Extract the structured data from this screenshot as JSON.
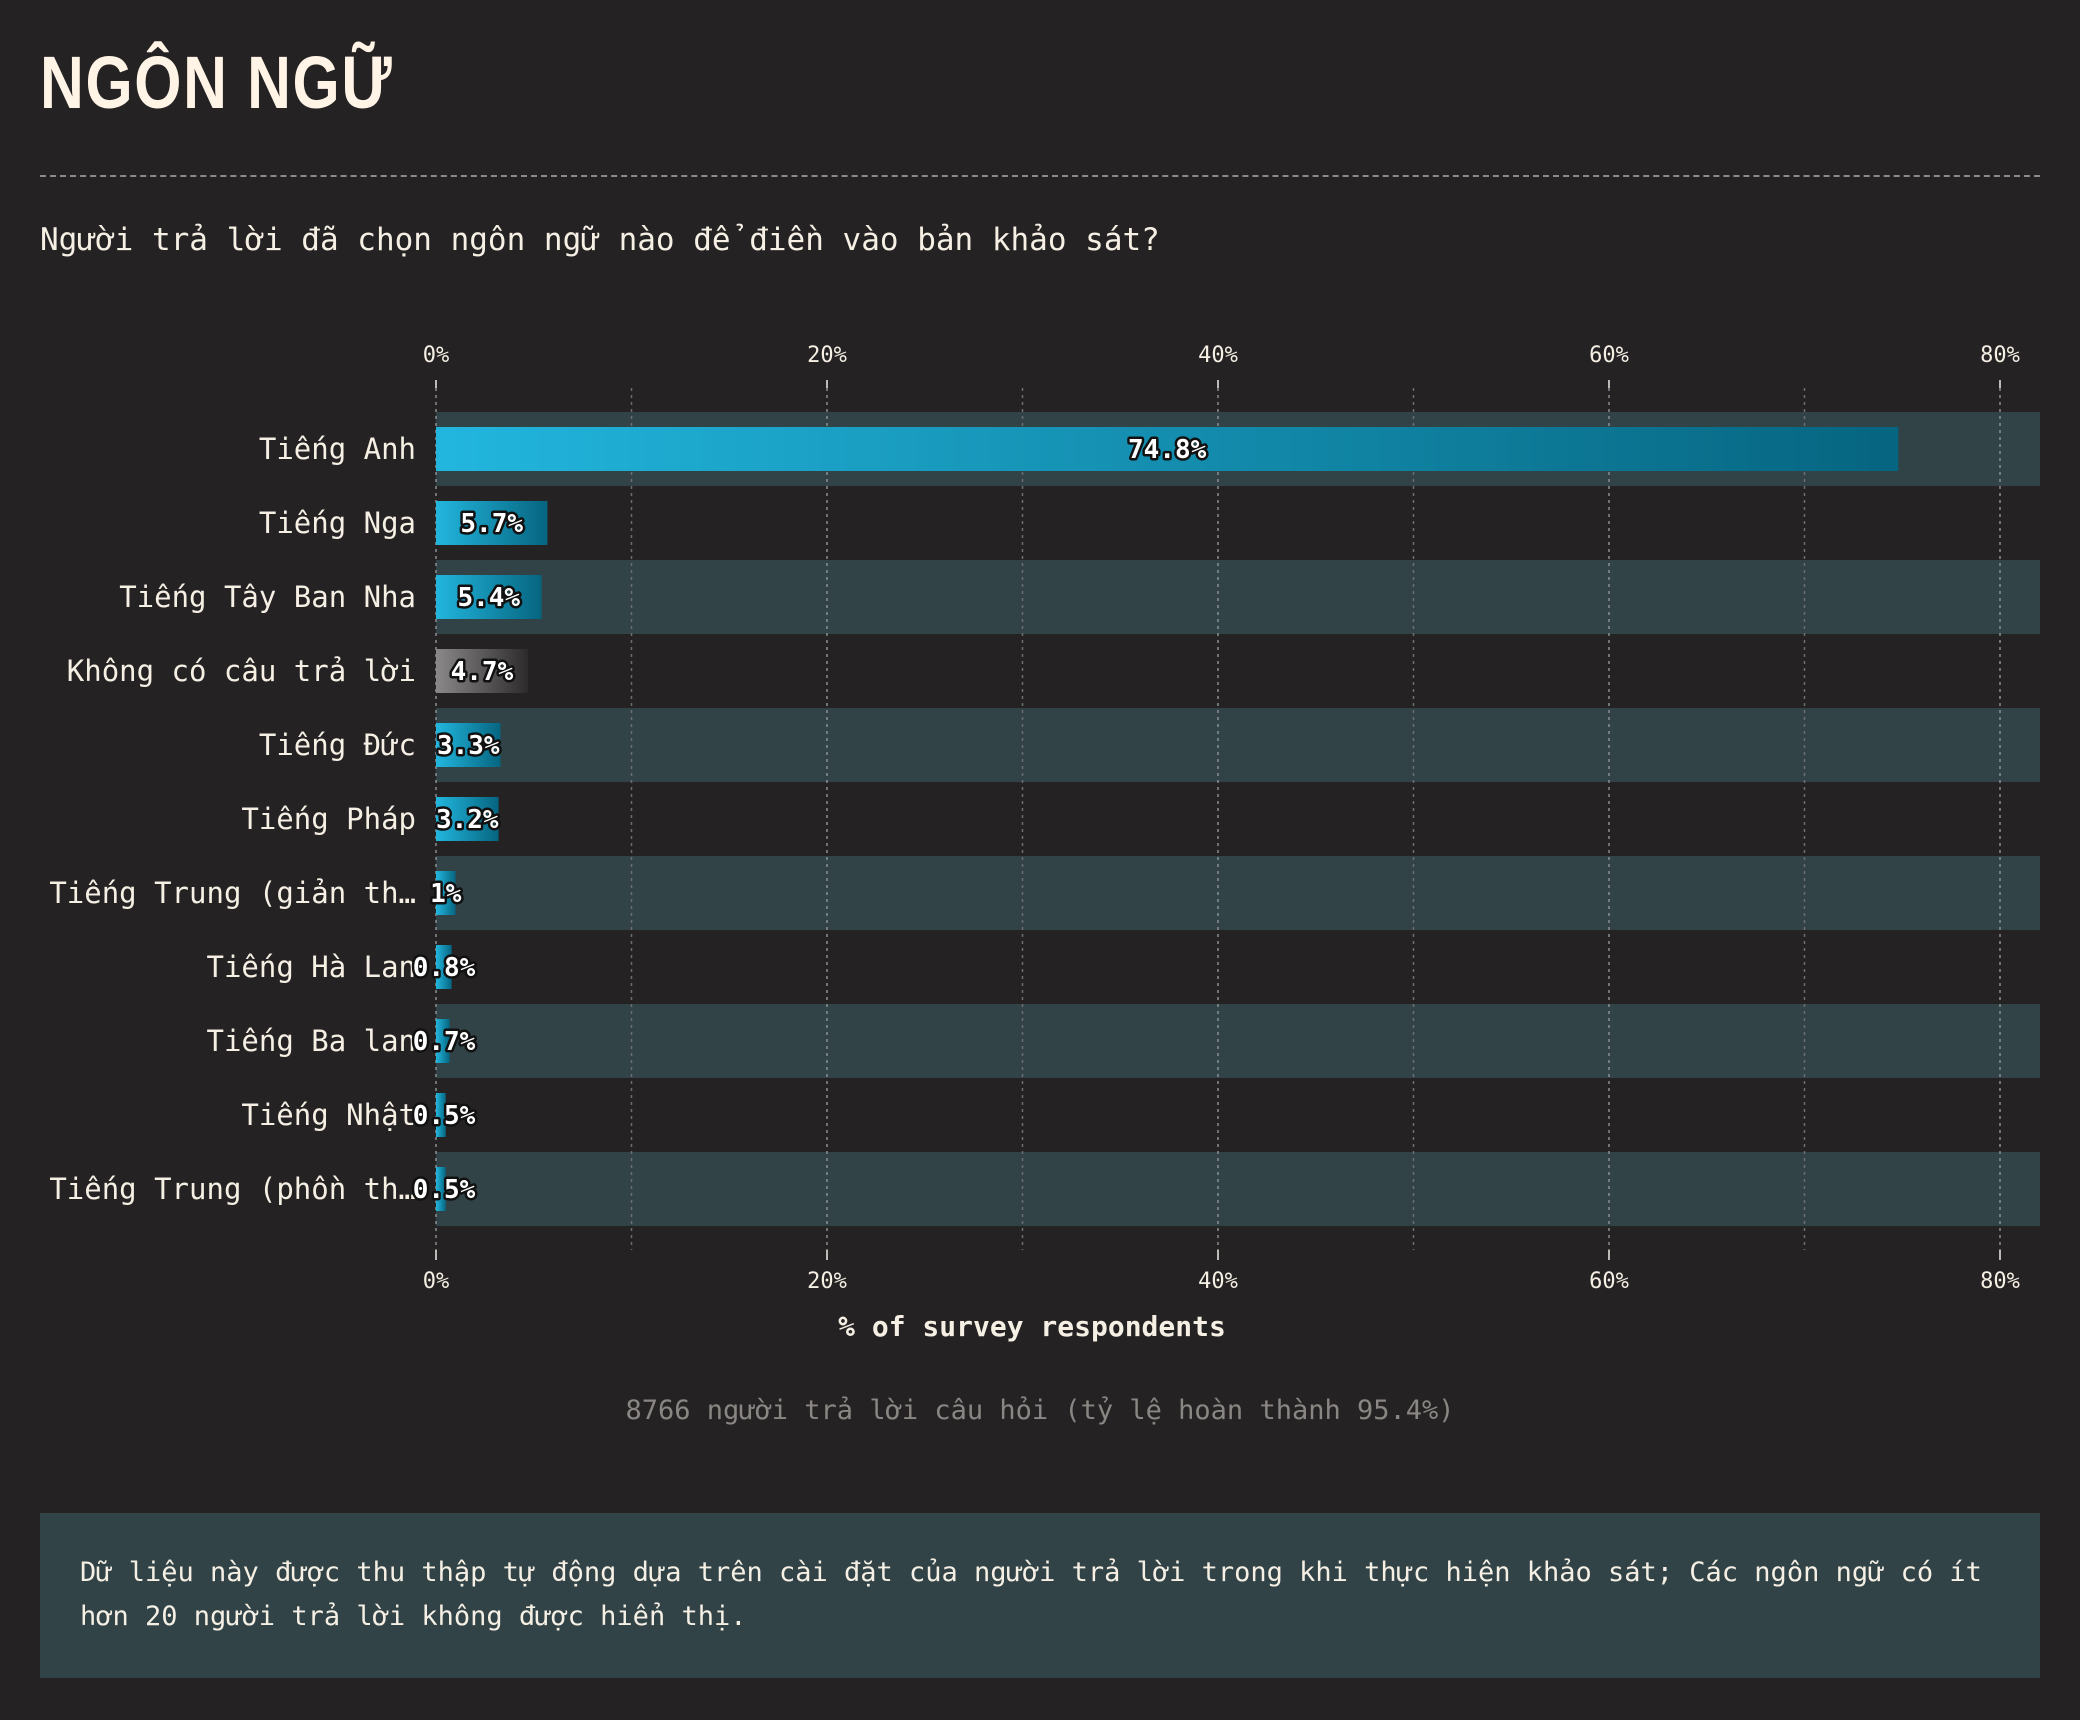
{
  "header": {
    "title": "NGÔN NGỮ",
    "question": "Người trả lời đã chọn ngôn ngữ nào để điền vào bản khảo sát?"
  },
  "footer": {
    "respondents": "8766 người trả lời câu hỏi (tỷ lệ hoàn thành 95.4%)",
    "note": "Dữ liệu này được thu thập tự động dựa trên cài đặt của người trả lời trong khi thực hiện khảo sát; Các ngôn ngữ có ít hơn 20 người trả lời không được hiển thị."
  },
  "chart_data": {
    "type": "bar",
    "orientation": "horizontal",
    "categories": [
      "Tiếng Anh",
      "Tiếng Nga",
      "Tiếng Tây Ban Nha",
      "Không có câu trả lời",
      "Tiếng Đức",
      "Tiếng Pháp",
      "Tiếng Trung (giản th…",
      "Tiếng Hà Lan",
      "Tiếng Ba lan",
      "Tiếng Nhật",
      "Tiếng Trung (phồn th…"
    ],
    "values": [
      74.8,
      5.7,
      5.4,
      4.7,
      3.3,
      3.2,
      1,
      0.8,
      0.7,
      0.5,
      0.5
    ],
    "value_labels": [
      "74.8%",
      "5.7%",
      "5.4%",
      "4.7%",
      "3.3%",
      "3.2%",
      "1%",
      "0.8%",
      "0.7%",
      "0.5%",
      "0.5%"
    ],
    "highlight": [
      false,
      false,
      false,
      true,
      false,
      false,
      false,
      false,
      false,
      false,
      false
    ],
    "xlabel": "% of survey respondents",
    "xlim": [
      0,
      82
    ],
    "ticks": [
      0,
      20,
      40,
      60,
      80
    ],
    "tick_labels": [
      "0%",
      "20%",
      "40%",
      "60%",
      "80%"
    ],
    "grid": true,
    "colors": {
      "bar_start": "#22b6de",
      "bar_end": "#066580",
      "no_answer_start": "#8a8888",
      "no_answer_end": "#2e2b2d",
      "row_band": "#314347",
      "background": "#252224"
    }
  }
}
